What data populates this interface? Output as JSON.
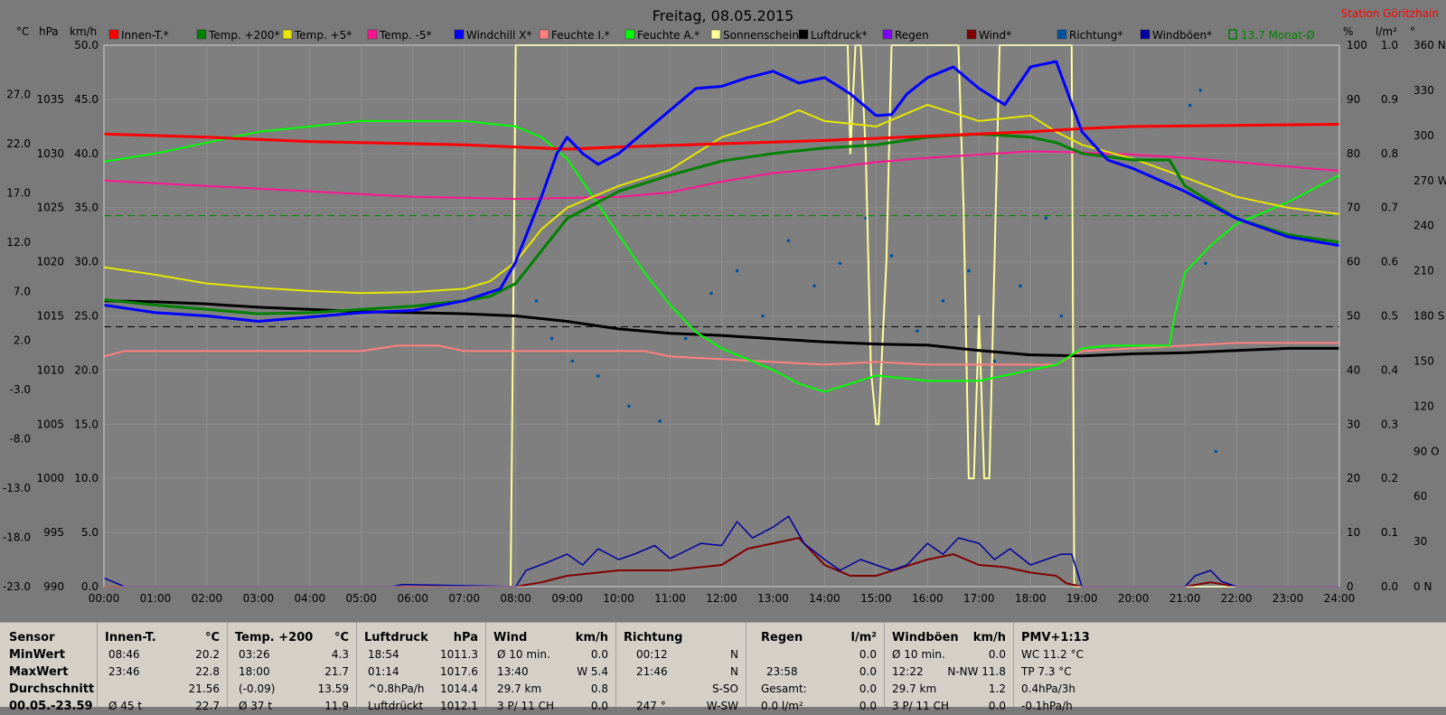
{
  "title": "Freitag, 08.05.2015",
  "station": "Station Göritzhain",
  "unit_headers": [
    "°C",
    "hPa",
    "km/h"
  ],
  "right_unit_headers": [
    "%",
    "l/m²",
    "°"
  ],
  "legend": [
    {
      "label": "Innen-T.*",
      "color": "#ff0000"
    },
    {
      "label": "Temp. +200*",
      "color": "#008000"
    },
    {
      "label": "Temp. +5*",
      "color": "#e6e600"
    },
    {
      "label": "Temp. -5*",
      "color": "#ff1493"
    },
    {
      "label": "Windchill X*",
      "color": "#0000ff"
    },
    {
      "label": "Feuchte I.*",
      "color": "#ff8080"
    },
    {
      "label": "Feuchte A.*",
      "color": "#00ff00"
    },
    {
      "label": "Sonnenschein",
      "color": "#ffff99"
    },
    {
      "label": "Luftdruck*",
      "color": "#000000"
    },
    {
      "label": "Regen",
      "color": "#8000ff"
    },
    {
      "label": "Wind*",
      "color": "#800000"
    },
    {
      "label": "Richtung*",
      "color": "#0050a0"
    },
    {
      "label": "Windböen*",
      "color": "#0000a0"
    },
    {
      "label": "13.7 Monat-Ø",
      "color": "#008000"
    }
  ],
  "axes": {
    "temp_ticks": [
      "27.0",
      "22.0",
      "17.0",
      "12.0",
      "7.0",
      "2.0",
      "-3.0",
      "-8.0",
      "-13.0",
      "-18.0",
      "-23.0"
    ],
    "hpa_ticks": [
      "1035",
      "1030",
      "1025",
      "1020",
      "1015",
      "1010",
      "1005",
      "1000",
      "995",
      "990"
    ],
    "kmh_ticks": [
      "50.0",
      "45.0",
      "40.0",
      "35.0",
      "30.0",
      "25.0",
      "20.0",
      "15.0",
      "10.0",
      "5.0",
      "0.0"
    ],
    "pct_ticks": [
      "100",
      "90",
      "80",
      "70",
      "60",
      "50",
      "40",
      "30",
      "20",
      "10",
      "0"
    ],
    "rain_ticks": [
      "1.0",
      "0.9",
      "0.8",
      "0.7",
      "0.6",
      "0.5",
      "0.4",
      "0.3",
      "0.2",
      "0.1",
      "0.0"
    ],
    "dir_ticks": [
      "360 N",
      "330",
      "300",
      "270 W",
      "240",
      "210",
      "180 S",
      "150",
      "120",
      "90 O",
      "60",
      "30",
      "0 N"
    ],
    "time_ticks": [
      "00:00",
      "01:00",
      "02:00",
      "03:00",
      "04:00",
      "05:00",
      "06:00",
      "07:00",
      "08:00",
      "09:00",
      "10:00",
      "11:00",
      "12:00",
      "13:00",
      "14:00",
      "15:00",
      "16:00",
      "17:00",
      "18:00",
      "19:00",
      "20:00",
      "21:00",
      "22:00",
      "23:00",
      "24:00"
    ]
  },
  "chart_data": {
    "type": "line",
    "title": "Freitag, 08.05.2015",
    "x_unit": "hour",
    "xlim": [
      0,
      24
    ],
    "left_axis_kmh_lim": [
      0,
      50
    ],
    "right_axis_pct_lim": [
      0,
      100
    ],
    "grid": true,
    "series": [
      {
        "name": "Innen-T.*",
        "axis": "kmh",
        "color": "#ff0000",
        "x": [
          0,
          2,
          4,
          6,
          7,
          8,
          9,
          10,
          12,
          14,
          16,
          18,
          19,
          20,
          22,
          24
        ],
        "y": [
          41.8,
          41.5,
          41.1,
          40.9,
          40.8,
          40.6,
          40.4,
          40.6,
          40.9,
          41.2,
          41.6,
          42.0,
          42.3,
          42.5,
          42.6,
          42.7
        ]
      },
      {
        "name": "Temp. +200*",
        "axis": "kmh",
        "color": "#008000",
        "x": [
          0,
          1,
          2,
          3,
          4,
          5,
          6,
          7,
          7.5,
          8,
          8.5,
          9,
          10,
          11,
          12,
          13,
          14,
          15,
          16,
          17,
          18,
          18.5,
          19,
          20,
          20.7,
          21,
          22,
          23,
          24
        ],
        "y": [
          26.5,
          26.0,
          25.6,
          25.2,
          25.3,
          25.6,
          25.9,
          26.4,
          26.8,
          28.0,
          31,
          34,
          36.5,
          38,
          39.3,
          40,
          40.5,
          40.8,
          41.5,
          41.8,
          41.5,
          41.0,
          40.0,
          39.4,
          39.4,
          37,
          34,
          32.5,
          31.8
        ]
      },
      {
        "name": "Temp. +5*",
        "axis": "kmh",
        "color": "#e6e600",
        "x": [
          0,
          1,
          2,
          3,
          4,
          5,
          6,
          7,
          7.5,
          8,
          8.5,
          9,
          10,
          11,
          12,
          13,
          13.5,
          14,
          15,
          16,
          17,
          18,
          18.5,
          19,
          20,
          21,
          22,
          23,
          24
        ],
        "y": [
          29.5,
          28.8,
          28.0,
          27.6,
          27.3,
          27.1,
          27.2,
          27.5,
          28.2,
          30,
          33,
          35,
          37,
          38.5,
          41.5,
          43,
          44,
          43,
          42.5,
          44.5,
          43,
          43.5,
          42,
          40.8,
          39.5,
          37.8,
          36,
          35,
          34.4
        ]
      },
      {
        "name": "Temp. -5*",
        "axis": "kmh",
        "color": "#ff1493",
        "x": [
          0,
          2,
          4,
          6,
          8,
          10,
          11,
          12,
          13,
          14,
          15,
          16,
          17,
          18,
          19,
          20,
          21,
          22,
          23,
          24
        ],
        "y": [
          37.5,
          37,
          36.5,
          36,
          35.8,
          36,
          36.4,
          37.4,
          38.2,
          38.6,
          39.2,
          39.6,
          39.9,
          40.2,
          40.1,
          39.9,
          39.6,
          39.2,
          38.8,
          38.4
        ]
      },
      {
        "name": "Windchill X*",
        "axis": "kmh",
        "color": "#0000ff",
        "x": [
          0,
          1,
          2,
          3,
          4,
          5,
          6,
          7,
          7.7,
          8,
          8.5,
          8.8,
          9,
          9.3,
          9.6,
          10,
          10.5,
          11,
          11.5,
          12,
          12.5,
          13,
          13.5,
          14,
          14.5,
          15,
          15.3,
          15.6,
          16,
          16.5,
          17,
          17.5,
          18,
          18.5,
          19,
          19.5,
          20,
          21,
          22,
          23,
          24
        ],
        "y": [
          26.0,
          25.3,
          25.0,
          24.5,
          24.9,
          25.3,
          25.5,
          26.4,
          27.5,
          30,
          36,
          40,
          41.5,
          40,
          39,
          40,
          42,
          44,
          46,
          46.2,
          47,
          47.6,
          46.5,
          47,
          45.5,
          43.5,
          43.6,
          45.5,
          47,
          48,
          46,
          44.5,
          48,
          48.5,
          42,
          39.4,
          38.6,
          36.5,
          34,
          32.3,
          31.5
        ]
      },
      {
        "name": "Feuchte I.*",
        "axis": "pct",
        "color": "#ff8080",
        "x": [
          0,
          0.4,
          1,
          3,
          5,
          5.7,
          6,
          6.5,
          7,
          7.5,
          8,
          9,
          10,
          10.5,
          11,
          12,
          13,
          14,
          15,
          16,
          17,
          17.5,
          18,
          18.5,
          19,
          20,
          21,
          22,
          24
        ],
        "y": [
          42.5,
          43.5,
          43.5,
          43.5,
          43.5,
          44.5,
          44.5,
          44.5,
          43.5,
          43.5,
          43.5,
          43.5,
          43.5,
          43.5,
          42.5,
          42,
          41.5,
          41,
          41.5,
          41,
          41,
          41,
          41,
          41,
          43.5,
          44,
          44.5,
          45,
          45
        ]
      },
      {
        "name": "Feuchte A.*",
        "axis": "pct",
        "color": "#00ff00",
        "x": [
          0,
          1,
          2,
          3,
          4,
          5,
          6,
          7,
          8,
          8.5,
          9,
          9.5,
          10,
          10.5,
          11,
          11.5,
          12,
          12.5,
          13,
          13.5,
          14,
          14.5,
          15,
          16,
          17,
          18,
          18.5,
          19,
          19.5,
          20,
          20.5,
          20.7,
          20.8,
          21,
          21.5,
          22,
          23,
          24
        ],
        "y": [
          78.5,
          80,
          82,
          84,
          85,
          86,
          86,
          86,
          85,
          83,
          79,
          72,
          65,
          58,
          52,
          47,
          44,
          42,
          40,
          37.5,
          36,
          37.5,
          39,
          38,
          38,
          40,
          41,
          44,
          44.5,
          44.5,
          44.5,
          44.5,
          50,
          58,
          63,
          67,
          71,
          76
        ]
      },
      {
        "name": "Sonnenschein",
        "axis": "pct",
        "color": "#ffff99",
        "x": [
          0,
          7.9,
          8.0,
          14.45,
          14.5,
          14.6,
          14.7,
          14.8,
          14.9,
          15.0,
          15.05,
          15.2,
          15.3,
          15.4,
          16.5,
          16.6,
          16.7,
          16.8,
          16.9,
          17.0,
          17.1,
          17.2,
          17.3,
          17.4,
          17.5,
          18.8,
          18.85,
          24
        ],
        "y": [
          0,
          0,
          100,
          100,
          80,
          100,
          100,
          80,
          40,
          30,
          30,
          60,
          100,
          100,
          100,
          100,
          70,
          20,
          20,
          50,
          20,
          20,
          60,
          100,
          100,
          100,
          0,
          0
        ]
      },
      {
        "name": "Luftdruck*",
        "axis": "hpa",
        "color": "#000000",
        "x": [
          0,
          1,
          2,
          3,
          4,
          5,
          6,
          7,
          8,
          9,
          10,
          11,
          12,
          13,
          14,
          15,
          16,
          17,
          18,
          19,
          20,
          21,
          22,
          23,
          24
        ],
        "y": [
          1016.4,
          1016.3,
          1016.1,
          1015.8,
          1015.6,
          1015.4,
          1015.3,
          1015.2,
          1015.0,
          1014.5,
          1013.8,
          1013.4,
          1013.2,
          1012.9,
          1012.6,
          1012.4,
          1012.3,
          1011.8,
          1011.4,
          1011.3,
          1011.5,
          1011.6,
          1011.8,
          1012.0,
          1012.0
        ]
      },
      {
        "name": "Wind*",
        "axis": "kmh",
        "color": "#800000",
        "x": [
          0,
          8,
          8.5,
          9,
          10,
          11,
          12,
          12.5,
          13,
          13.5,
          14,
          14.5,
          15,
          16,
          16.5,
          17,
          17.5,
          18,
          18.5,
          18.7,
          19,
          21,
          21.5,
          22,
          24
        ],
        "y": [
          0,
          0,
          0.4,
          1.0,
          1.5,
          1.5,
          2,
          3.5,
          4,
          4.5,
          2,
          1,
          1,
          2.5,
          3,
          2,
          1.8,
          1.3,
          1,
          0.3,
          0,
          0,
          0.4,
          0,
          0
        ]
      },
      {
        "name": "Windböen*",
        "axis": "kmh",
        "color": "#0000a0",
        "x": [
          0,
          0.2,
          0.4,
          5.6,
          5.8,
          8,
          8.2,
          8.6,
          9,
          9.3,
          9.6,
          10,
          10.3,
          10.7,
          11,
          11.3,
          11.6,
          12,
          12.3,
          12.6,
          13,
          13.3,
          13.6,
          14,
          14.3,
          14.7,
          15,
          15.3,
          15.6,
          16,
          16.3,
          16.6,
          17,
          17.3,
          17.6,
          18,
          18.3,
          18.6,
          18.8,
          19,
          21,
          21.2,
          21.5,
          21.7,
          22,
          24
        ],
        "y": [
          0.8,
          0.4,
          0,
          0,
          0.2,
          0,
          1.5,
          2.2,
          3,
          2,
          3.5,
          2.5,
          3,
          3.8,
          2.6,
          3.3,
          4,
          3.8,
          6,
          4.5,
          5.5,
          6.5,
          4,
          2.5,
          1.5,
          2.5,
          2,
          1.5,
          2,
          4,
          3,
          4.5,
          4,
          2.5,
          3.5,
          2,
          2.5,
          3,
          3,
          0,
          0,
          1,
          1.5,
          0.5,
          0,
          0
        ]
      },
      {
        "name": "Richtung*",
        "axis": "dir",
        "color": "#0050a0",
        "x": [
          8.4,
          8.7,
          9.1,
          9.6,
          10.2,
          10.8,
          11.3,
          11.8,
          12.3,
          12.8,
          13.3,
          13.8,
          14.3,
          14.8,
          15.3,
          15.8,
          16.3,
          16.8,
          17.3,
          17.8,
          18.3,
          18.6,
          21.1,
          21.3,
          21.4,
          21.6
        ],
        "y": [
          190,
          165,
          150,
          140,
          120,
          110,
          165,
          195,
          210,
          180,
          230,
          200,
          215,
          245,
          220,
          170,
          190,
          210,
          150,
          200,
          245,
          180,
          320,
          330,
          215,
          90
        ]
      }
    ],
    "reference_lines": [
      {
        "axis": "pct",
        "y": 48,
        "color": "#000000",
        "style": "dashed"
      },
      {
        "axis": "pct",
        "y": 68.5,
        "color": "#008000",
        "style": "dashed"
      }
    ]
  },
  "summary": {
    "sensor": {
      "header": "Sensor",
      "rows": [
        "MinWert",
        "MaxWert",
        "Durchschnitt",
        "00.05.-23.59"
      ]
    },
    "innen_t": {
      "header": "Innen-T.",
      "unit": "°C",
      "rows": [
        [
          "08:46",
          "20.2"
        ],
        [
          "23:46",
          "22.8"
        ],
        [
          "",
          "21.56"
        ],
        [
          "Ø 45 t",
          "22.7"
        ]
      ]
    },
    "temp200": {
      "header": "Temp. +200",
      "unit": "°C",
      "rows": [
        [
          "03:26",
          "4.3"
        ],
        [
          "18:00",
          "21.7"
        ],
        [
          "(-0.09)",
          "13.59"
        ],
        [
          "Ø 37 t",
          "11.9"
        ]
      ]
    },
    "luftdruck": {
      "header": "Luftdruck",
      "unit": "hPa",
      "rows": [
        [
          "18:54",
          "1011.3"
        ],
        [
          "01:14",
          "1017.6"
        ],
        [
          "^0.8hPa/h",
          "1014.4"
        ],
        [
          "Luftdrückt",
          "1012.1"
        ]
      ]
    },
    "wind": {
      "header": "Wind",
      "unit": "km/h",
      "rows": [
        [
          "Ø 10 min.",
          "0.0"
        ],
        [
          "13:40",
          "W 5.4"
        ],
        [
          "29.7 km",
          "0.8"
        ],
        [
          "3 P/ 11 CH",
          "0.0"
        ]
      ]
    },
    "richtung": {
      "header": "Richtung",
      "unit": "",
      "rows": [
        [
          "00:12",
          "N"
        ],
        [
          "21:46",
          "N"
        ],
        [
          "",
          "S-SO"
        ],
        [
          "247 °",
          "W-SW"
        ]
      ]
    },
    "regen": {
      "header": "Regen",
      "unit": "l/m²",
      "rows": [
        [
          "",
          "0.0"
        ],
        [
          "23:58",
          "0.0"
        ],
        [
          "Gesamt:",
          "0.0"
        ],
        [
          "0.0 l/m²",
          "0.0"
        ]
      ]
    },
    "windboeen": {
      "header": "Windböen",
      "unit": "km/h",
      "rows": [
        [
          "Ø 10 min.",
          "0.0"
        ],
        [
          "12:22",
          "N-NW 11.8"
        ],
        [
          "29.7 km",
          "1.2"
        ],
        [
          "3 P/ 11 CH",
          "0.0"
        ]
      ]
    },
    "pmv": {
      "header": "PMV+1:13",
      "rows": [
        "WC 11.2 °C",
        "TP 7.3 °C",
        "0.4hPa/3h",
        "-0.1hPa/h"
      ]
    }
  }
}
